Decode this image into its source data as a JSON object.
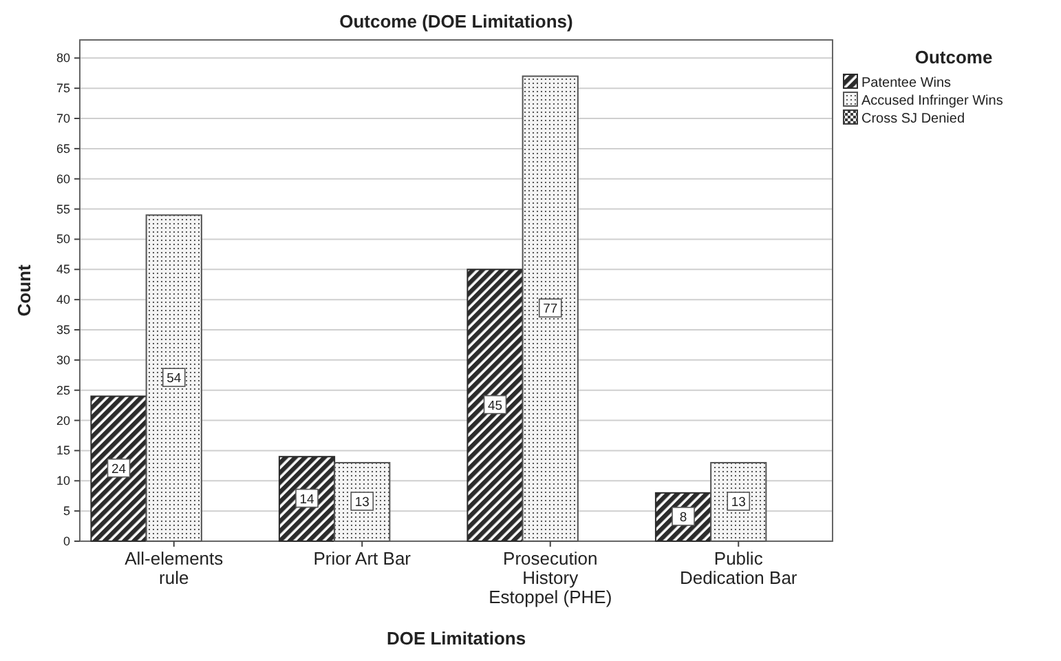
{
  "chart_data": {
    "type": "bar",
    "title": "Outcome (DOE Limitations)",
    "xlabel": "DOE Limitations",
    "ylabel": "Count",
    "legend_title": "Outcome",
    "categories": [
      "All-elements rule",
      "Prior Art Bar",
      "Prosecution History Estoppel (PHE)",
      "Public Dedication Bar"
    ],
    "series": [
      {
        "name": "Patentee Wins",
        "color": "#2b2b2b",
        "values": [
          24,
          14,
          45,
          8
        ],
        "value_labels": [
          "24",
          "14",
          "45",
          "8"
        ]
      },
      {
        "name": "Accused Infringer Wins",
        "color": "#555555",
        "values": [
          54,
          13,
          77,
          13
        ],
        "value_labels": [
          "54",
          "13",
          "77",
          "13"
        ]
      },
      {
        "name": "Cross SJ Denied",
        "color": "#3a3a3a",
        "values": [
          0,
          0,
          0,
          0
        ],
        "value_labels": [
          null,
          null,
          null,
          null
        ]
      }
    ],
    "ylim": [
      0,
      83
    ],
    "yticks": [
      0,
      5,
      10,
      15,
      20,
      25,
      30,
      35,
      40,
      45,
      50,
      55,
      60,
      65,
      70,
      75,
      80
    ],
    "grid": "y",
    "legend": "right"
  }
}
